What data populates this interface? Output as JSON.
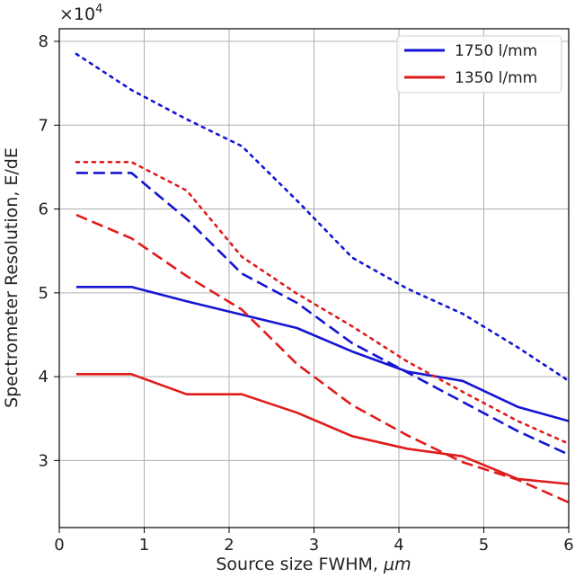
{
  "chart_data": {
    "type": "line",
    "xlabel": "Source size FWHM, ",
    "xlabel_unit": "μm",
    "ylabel": "Spectrometer Resolution, E/dE",
    "y_multiplier_base": "×10",
    "y_multiplier_exp": "4",
    "xlim": [
      0,
      6
    ],
    "ylim": [
      2.2,
      8.15
    ],
    "xticks": [
      0,
      1,
      2,
      3,
      4,
      5,
      6
    ],
    "yticks": [
      3,
      4,
      5,
      6,
      7,
      8
    ],
    "grid": true,
    "legend_position": "top-right",
    "legend": [
      {
        "label": "1750 l/mm",
        "color": "#1515d4"
      },
      {
        "label": "1350 l/mm",
        "color": "#e01b1b"
      }
    ],
    "series": [
      {
        "group": "1750 l/mm",
        "style": "solid",
        "color": "#1515d4",
        "x": [
          0.2,
          0.85,
          1.5,
          2.15,
          2.8,
          3.45,
          4.1,
          4.75,
          5.4,
          6.0
        ],
        "y": [
          5.07,
          5.07,
          4.9,
          4.74,
          4.58,
          4.3,
          4.06,
          3.95,
          3.64,
          3.47
        ]
      },
      {
        "group": "1750 l/mm",
        "style": "dashed",
        "color": "#1515d4",
        "x": [
          0.2,
          0.85,
          1.5,
          2.15,
          2.8,
          3.45,
          4.1,
          4.75,
          5.4,
          6.0
        ],
        "y": [
          6.43,
          6.43,
          5.88,
          5.23,
          4.88,
          4.4,
          4.05,
          3.7,
          3.35,
          3.07
        ]
      },
      {
        "group": "1750 l/mm",
        "style": "dotted",
        "color": "#1515d4",
        "x": [
          0.2,
          0.85,
          1.5,
          2.15,
          2.8,
          3.45,
          4.1,
          4.75,
          5.4,
          6.0
        ],
        "y": [
          7.85,
          7.42,
          7.07,
          6.75,
          6.1,
          5.42,
          5.05,
          4.75,
          4.35,
          3.95
        ]
      },
      {
        "group": "1350 l/mm",
        "style": "solid",
        "color": "#e01b1b",
        "x": [
          0.2,
          0.85,
          1.5,
          2.15,
          2.8,
          3.45,
          4.1,
          4.75,
          5.4,
          6.0
        ],
        "y": [
          4.03,
          4.03,
          3.79,
          3.79,
          3.57,
          3.29,
          3.14,
          3.05,
          2.78,
          2.72
        ]
      },
      {
        "group": "1350 l/mm",
        "style": "dashed",
        "color": "#e01b1b",
        "x": [
          0.2,
          0.85,
          1.5,
          2.15,
          2.8,
          3.45,
          4.1,
          4.75,
          5.4,
          6.0
        ],
        "y": [
          5.93,
          5.65,
          5.2,
          4.8,
          4.15,
          3.66,
          3.3,
          2.98,
          2.77,
          2.5
        ]
      },
      {
        "group": "1350 l/mm",
        "style": "dotted",
        "color": "#e01b1b",
        "x": [
          0.2,
          0.85,
          1.5,
          2.15,
          2.8,
          3.45,
          4.1,
          4.75,
          5.4,
          6.0
        ],
        "y": [
          6.56,
          6.56,
          6.22,
          5.43,
          4.99,
          4.6,
          4.18,
          3.82,
          3.47,
          3.2
        ]
      }
    ]
  }
}
